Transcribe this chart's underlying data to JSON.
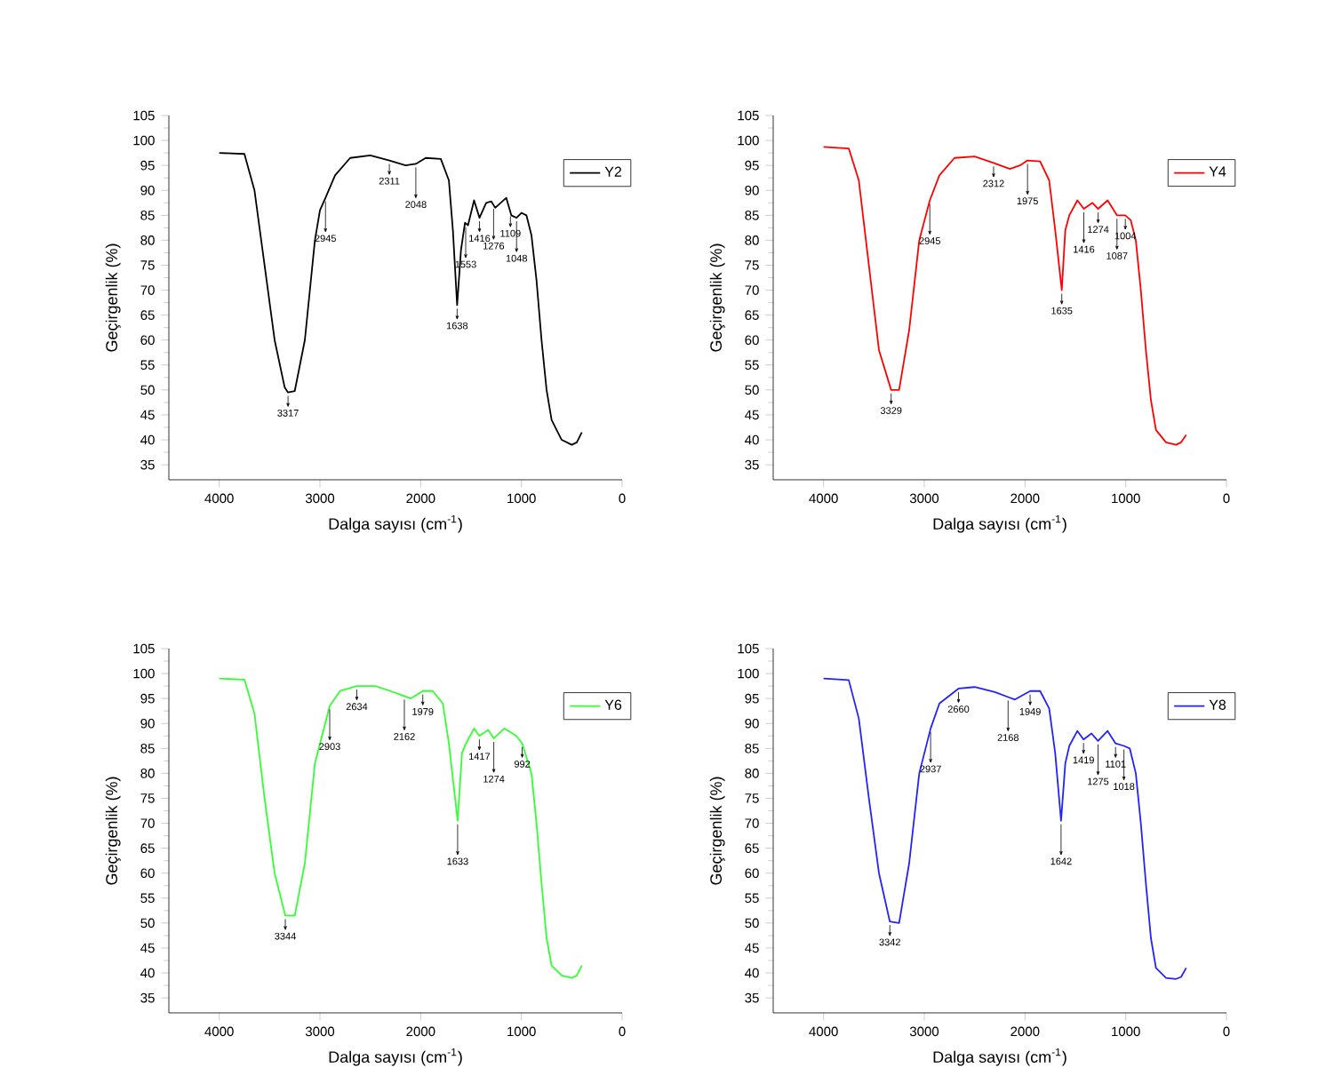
{
  "chart_data": [
    {
      "type": "line",
      "xlabel": "Dalga sayısı (cm$^{-1}$)",
      "ylabel": "Geçirgenlik (%)",
      "xlim": [
        4500,
        0
      ],
      "ylim": [
        32,
        105
      ],
      "xticks": [
        4000,
        3000,
        2000,
        1000,
        0
      ],
      "yticks": [
        35,
        40,
        45,
        50,
        55,
        60,
        65,
        70,
        75,
        80,
        85,
        90,
        95,
        100,
        105
      ],
      "legend": "top right",
      "series": [
        {
          "name": "Y2",
          "color": "#000000",
          "x": [
            4000,
            3750,
            3650,
            3550,
            3450,
            3350,
            3317,
            3250,
            3150,
            3050,
            3000,
            2945,
            2850,
            2700,
            2500,
            2311,
            2150,
            2048,
            1950,
            1800,
            1720,
            1680,
            1638,
            1600,
            1560,
            1530,
            1470,
            1416,
            1350,
            1300,
            1260,
            1150,
            1100,
            1048,
            1000,
            950,
            900,
            850,
            800,
            750,
            700,
            600,
            500,
            450,
            400
          ],
          "values": [
            97.5,
            97.3,
            90,
            75,
            60,
            50.5,
            49.5,
            49.8,
            60,
            80,
            86,
            88.5,
            93,
            96.5,
            97,
            96,
            95,
            95.3,
            96.5,
            96.3,
            92,
            82,
            67,
            78,
            83.5,
            83,
            88,
            84.5,
            87.5,
            87.8,
            86.5,
            88.5,
            85,
            84.5,
            85.5,
            85,
            81,
            72,
            60,
            50,
            44,
            40,
            39,
            39.5,
            41.5
          ]
        }
      ],
      "annotations": [
        {
          "text": "3317",
          "x": 3317,
          "y": 49.5
        },
        {
          "text": "2945",
          "x": 2945,
          "y": 88.5
        },
        {
          "text": "2311",
          "x": 2311,
          "y": 96
        },
        {
          "text": "2048",
          "x": 2048,
          "y": 95.3
        },
        {
          "text": "1638",
          "x": 1638,
          "y": 67
        },
        {
          "text": "1553",
          "x": 1553,
          "y": 83.3
        },
        {
          "text": "1416",
          "x": 1416,
          "y": 84.5
        },
        {
          "text": "1276",
          "x": 1276,
          "y": 87
        },
        {
          "text": "1109",
          "x": 1109,
          "y": 85.5
        },
        {
          "text": "1048",
          "x": 1048,
          "y": 84.5
        }
      ]
    },
    {
      "type": "line",
      "xlabel": "Dalga sayısı (cm$^{-1}$)",
      "ylabel": "Geçirgenlik (%)",
      "xlim": [
        4500,
        0
      ],
      "ylim": [
        32,
        105
      ],
      "xticks": [
        4000,
        3000,
        2000,
        1000,
        0
      ],
      "yticks": [
        35,
        40,
        45,
        50,
        55,
        60,
        65,
        70,
        75,
        80,
        85,
        90,
        95,
        100,
        105
      ],
      "legend": "top right",
      "series": [
        {
          "name": "Y4",
          "color": "#ff0000",
          "x": [
            4000,
            3750,
            3650,
            3550,
            3450,
            3329,
            3250,
            3150,
            3050,
            2945,
            2850,
            2700,
            2500,
            2312,
            2150,
            2050,
            1975,
            1850,
            1760,
            1700,
            1635,
            1600,
            1560,
            1480,
            1416,
            1330,
            1274,
            1180,
            1087,
            1004,
            950,
            900,
            850,
            800,
            750,
            700,
            600,
            500,
            450,
            400
          ],
          "values": [
            98.7,
            98.4,
            92,
            75,
            58,
            50,
            50,
            62,
            80,
            88,
            93,
            96.5,
            96.8,
            95.5,
            94.3,
            95,
            96,
            95.8,
            92,
            82,
            70,
            82,
            85,
            88,
            86.3,
            87.5,
            86.3,
            88,
            85,
            85,
            84,
            80,
            70,
            58,
            48,
            42,
            39.5,
            39,
            39.5,
            41
          ]
        }
      ],
      "annotations": [
        {
          "text": "3329",
          "x": 3329,
          "y": 50
        },
        {
          "text": "2945",
          "x": 2945,
          "y": 88
        },
        {
          "text": "2312",
          "x": 2312,
          "y": 95.5
        },
        {
          "text": "1975",
          "x": 1975,
          "y": 96
        },
        {
          "text": "1635",
          "x": 1635,
          "y": 70
        },
        {
          "text": "1416",
          "x": 1416,
          "y": 86.3
        },
        {
          "text": "1274",
          "x": 1274,
          "y": 86.3
        },
        {
          "text": "1087",
          "x": 1087,
          "y": 85
        },
        {
          "text": "1004",
          "x": 1004,
          "y": 85
        }
      ]
    },
    {
      "type": "line",
      "xlabel": "Dalga sayısı (cm$^{-1}$)",
      "ylabel": "Geçirgenlik (%)",
      "xlim": [
        4500,
        0
      ],
      "ylim": [
        32,
        105
      ],
      "xticks": [
        4000,
        3000,
        2000,
        1000,
        0
      ],
      "yticks": [
        35,
        40,
        45,
        50,
        55,
        60,
        65,
        70,
        75,
        80,
        85,
        90,
        95,
        100,
        105
      ],
      "legend": "top right",
      "series": [
        {
          "name": "Y6",
          "color": "#33ff33",
          "x": [
            4000,
            3750,
            3650,
            3550,
            3450,
            3344,
            3250,
            3150,
            3050,
            2903,
            2800,
            2634,
            2450,
            2300,
            2162,
            2100,
            1979,
            1880,
            1780,
            1720,
            1633,
            1590,
            1550,
            1470,
            1417,
            1330,
            1274,
            1170,
            1050,
            992,
            900,
            850,
            800,
            750,
            700,
            600,
            500,
            450,
            400
          ],
          "values": [
            99,
            98.8,
            92,
            75,
            60,
            51.5,
            51.5,
            62,
            82,
            93.5,
            96.5,
            97.5,
            97.5,
            96.5,
            95.5,
            95,
            96.5,
            96.5,
            94,
            86,
            70.5,
            84,
            86,
            89,
            87.5,
            88.7,
            87,
            89,
            87.5,
            86,
            80,
            70,
            58,
            47,
            41.5,
            39.5,
            39,
            39.5,
            41.5
          ]
        }
      ],
      "annotations": [
        {
          "text": "3344",
          "x": 3344,
          "y": 51.5
        },
        {
          "text": "2903",
          "x": 2903,
          "y": 93.5
        },
        {
          "text": "2634",
          "x": 2634,
          "y": 97.5
        },
        {
          "text": "2162",
          "x": 2162,
          "y": 95.5
        },
        {
          "text": "1979",
          "x": 1979,
          "y": 96.5
        },
        {
          "text": "1633",
          "x": 1633,
          "y": 70.5
        },
        {
          "text": "1417",
          "x": 1417,
          "y": 87.5
        },
        {
          "text": "1274",
          "x": 1274,
          "y": 87
        },
        {
          "text": "992",
          "x": 992,
          "y": 86
        }
      ]
    },
    {
      "type": "line",
      "xlabel": "Dalga sayısı (cm$^{-1}$)",
      "ylabel": "Geçirgenlik (%)",
      "xlim": [
        4500,
        0
      ],
      "ylim": [
        32,
        105
      ],
      "xticks": [
        4000,
        3000,
        2000,
        1000,
        0
      ],
      "yticks": [
        35,
        40,
        45,
        50,
        55,
        60,
        65,
        70,
        75,
        80,
        85,
        90,
        95,
        100,
        105
      ],
      "legend": "top right",
      "series": [
        {
          "name": "Y8",
          "color": "#2222ff",
          "x": [
            4000,
            3750,
            3650,
            3550,
            3450,
            3342,
            3250,
            3150,
            3050,
            2937,
            2850,
            2660,
            2500,
            2300,
            2168,
            2100,
            1949,
            1850,
            1760,
            1700,
            1642,
            1600,
            1560,
            1480,
            1419,
            1340,
            1275,
            1180,
            1101,
            1018,
            960,
            900,
            850,
            800,
            750,
            700,
            600,
            500,
            450,
            400
          ],
          "values": [
            99,
            98.7,
            91,
            75,
            60,
            50.3,
            50,
            62,
            80,
            89,
            94,
            97,
            97.3,
            96.3,
            95.3,
            94.8,
            96.5,
            96.5,
            93,
            84,
            70.5,
            82,
            85.5,
            88.5,
            86.8,
            88,
            86.5,
            88.5,
            86,
            85.5,
            85,
            80,
            70,
            58,
            47,
            41,
            39,
            38.8,
            39.2,
            41
          ]
        }
      ],
      "annotations": [
        {
          "text": "3342",
          "x": 3342,
          "y": 50.3
        },
        {
          "text": "2937",
          "x": 2937,
          "y": 89
        },
        {
          "text": "2660",
          "x": 2660,
          "y": 97
        },
        {
          "text": "2168",
          "x": 2168,
          "y": 95.3
        },
        {
          "text": "1949",
          "x": 1949,
          "y": 96.5
        },
        {
          "text": "1642",
          "x": 1642,
          "y": 70.5
        },
        {
          "text": "1419",
          "x": 1419,
          "y": 86.8
        },
        {
          "text": "1275",
          "x": 1275,
          "y": 86.5
        },
        {
          "text": "1101",
          "x": 1101,
          "y": 86
        },
        {
          "text": "1018",
          "x": 1018,
          "y": 85.5
        }
      ]
    }
  ]
}
